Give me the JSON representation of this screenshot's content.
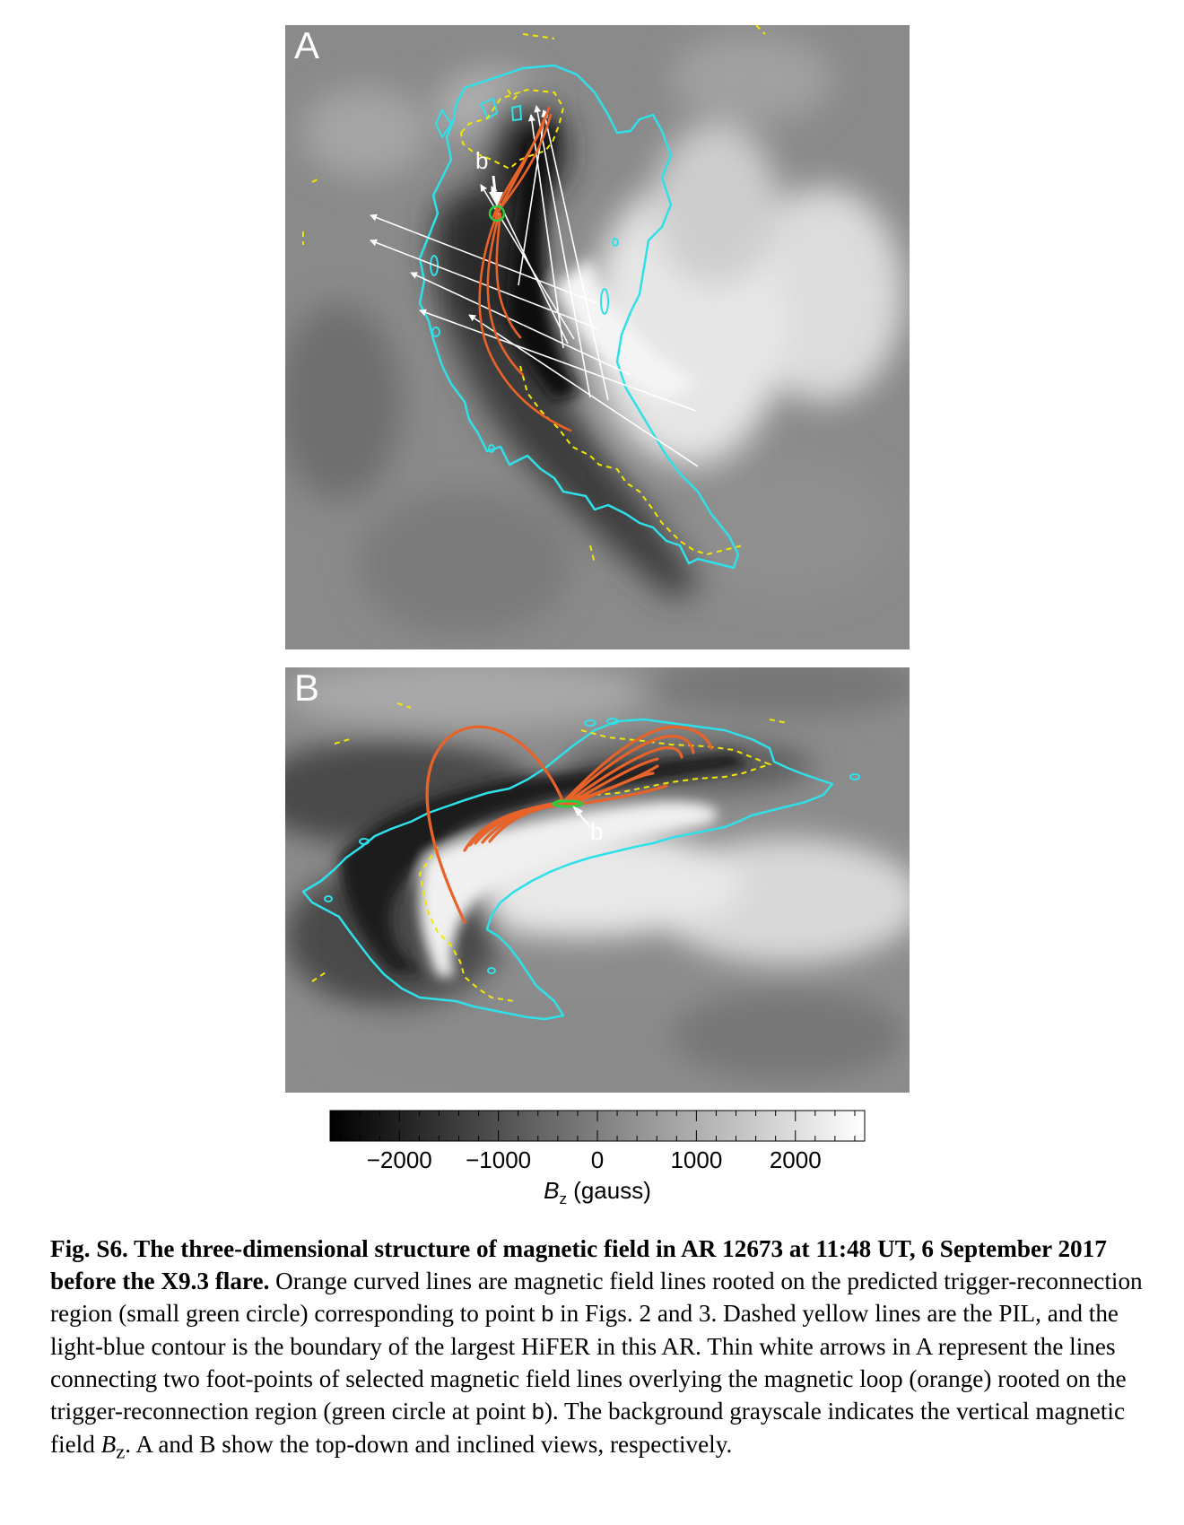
{
  "panels": {
    "a": {
      "label": "A",
      "point_label": "b"
    },
    "b": {
      "label": "B",
      "point_label": "b"
    }
  },
  "colorbar": {
    "ticks": [
      "−2000",
      "−1000",
      "0",
      "1000",
      "2000"
    ],
    "tick_values": [
      -2000,
      -1000,
      0,
      1000,
      2000
    ],
    "range": [
      -2700,
      2700
    ],
    "label_main": "B",
    "label_sub": "z",
    "label_unit": " (gauss)"
  },
  "colors": {
    "field_lines": "#e8632a",
    "pil": "#f2e600",
    "hifer_contour": "#2fe0e8",
    "trigger_circle": "#2ecc40",
    "arrows": "#ffffff"
  },
  "caption": {
    "title": "Fig. S6. The three-dimensional structure of magnetic field in AR 12673 at 11:48 UT, 6 September 2017 before the X9.3 flare.",
    "text1": " Orange curved lines are magnetic field lines rooted on the predicted trigger-reconnection region (small green circle) corresponding to point ",
    "point1": "b",
    "text2": " in Figs. 2 and 3. Dashed yellow lines are the PIL, and the light-blue contour is the boundary of the largest HiFER in this AR. Thin white arrows in A represent the lines connecting two foot-points of selected magnetic field lines overlying the magnetic loop (orange) rooted on the trigger-reconnection region (green circle at point ",
    "point2": "b",
    "text3": "). The background grayscale indicates the vertical magnetic field ",
    "bz_main": "B",
    "bz_sub": "z",
    "text4": ".  A and B show the top-down and inclined views, respectively."
  }
}
